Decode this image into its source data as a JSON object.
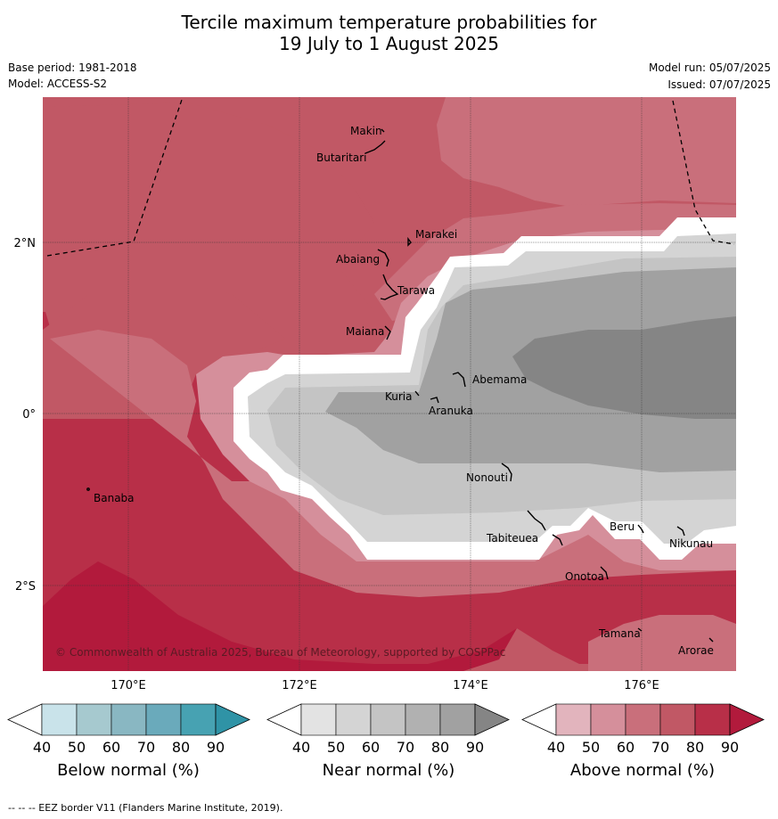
{
  "title_line1": "Tercile maximum temperature probabilities for",
  "title_line2": "19 July to 1 August 2025",
  "base_period": "Base period: 1981-2018",
  "model": "Model: ACCESS-S2",
  "model_run": "Model run: 05/07/2025",
  "issued": "Issued: 07/07/2025",
  "copyright": "© Commonwealth of Australia 2025, Bureau of Meteorology, supported by COSPPac",
  "footer": "--  --  -- EEZ border V11 (Flanders Marine Institute, 2019).",
  "axes": {
    "lat_labels": [
      "2°N",
      "0°",
      "2°S"
    ],
    "lon_labels": [
      "170°E",
      "172°E",
      "174°E",
      "176°E"
    ]
  },
  "places": [
    "Makin",
    "Butaritari",
    "Marakei",
    "Abaiang",
    "Tarawa",
    "Maiana",
    "Abemama",
    "Kuria",
    "Aranuka",
    "Banaba",
    "Nonouti",
    "Tabiteuea",
    "Beru",
    "Nikunau",
    "Onotoa",
    "Tamana",
    "Arorae"
  ],
  "colorbars": [
    {
      "label": "Below normal (%)",
      "ticks": [
        "40",
        "50",
        "60",
        "70",
        "80",
        "90"
      ],
      "colors": [
        "#c9e3ea",
        "#a6c9cf",
        "#89b7c2",
        "#6aaabb",
        "#47a2b2",
        "#2f93a6"
      ]
    },
    {
      "label": "Near normal (%)",
      "ticks": [
        "40",
        "50",
        "60",
        "70",
        "80",
        "90"
      ],
      "colors": [
        "#e3e3e3",
        "#d4d4d4",
        "#c4c4c4",
        "#b1b1b1",
        "#a1a1a1",
        "#858585"
      ]
    },
    {
      "label": "Above normal (%)",
      "ticks": [
        "40",
        "50",
        "60",
        "70",
        "80",
        "90"
      ],
      "colors": [
        "#e2b4bd",
        "#d58f9b",
        "#c96f7b",
        "#c15865",
        "#b82f48",
        "#b21a3c"
      ]
    }
  ]
}
